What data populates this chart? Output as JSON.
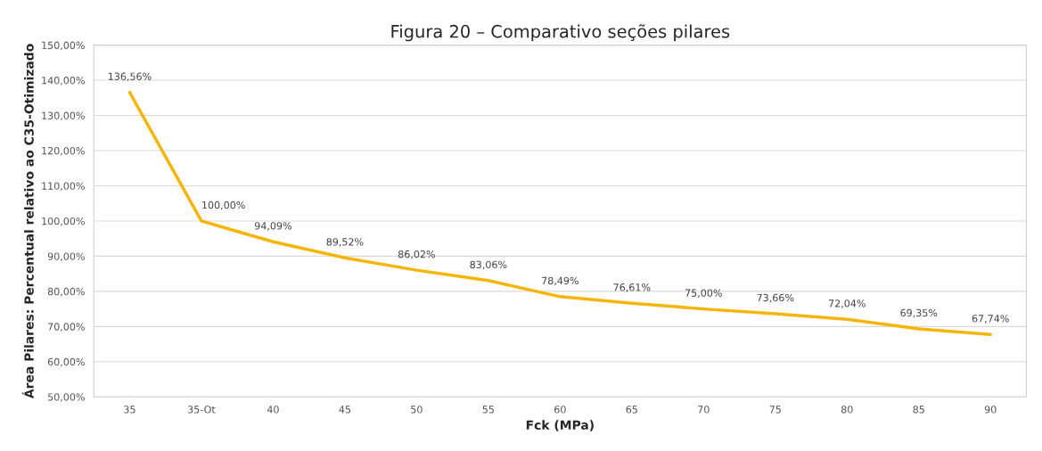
{
  "chart_data": {
    "type": "line",
    "title": "Figura 20 – Comparativo seções pilares",
    "xlabel": "Fck (MPa)",
    "ylabel": "Área Pilares: Percentual relativo ao C35-Otimizado",
    "categories": [
      "35",
      "35-Ot",
      "40",
      "45",
      "50",
      "55",
      "60",
      "65",
      "70",
      "75",
      "80",
      "85",
      "90"
    ],
    "series": [
      {
        "color": "#f5b50a",
        "values": [
          136.56,
          100.0,
          94.09,
          89.52,
          86.02,
          83.06,
          78.49,
          76.61,
          75.0,
          73.66,
          72.04,
          69.35,
          67.74
        ],
        "value_labels": [
          "136,56%",
          "100,00%",
          "94,09%",
          "89,52%",
          "86,02%",
          "83,06%",
          "78,49%",
          "76,61%",
          "75,00%",
          "73,66%",
          "72,04%",
          "69,35%",
          "67,74%"
        ]
      }
    ],
    "ylim": [
      50,
      150
    ],
    "yticks": [
      {
        "value": 50,
        "label": "50,00%"
      },
      {
        "value": 60,
        "label": "60,00%"
      },
      {
        "value": 70,
        "label": "70,00%"
      },
      {
        "value": 80,
        "label": "80,00%"
      },
      {
        "value": 90,
        "label": "90,00%"
      },
      {
        "value": 100,
        "label": "100,00%"
      },
      {
        "value": 110,
        "label": "110,00%"
      },
      {
        "value": 120,
        "label": "120,00%"
      },
      {
        "value": 130,
        "label": "130,00%"
      },
      {
        "value": 140,
        "label": "140,00%"
      },
      {
        "value": 150,
        "label": "150,00%"
      }
    ],
    "grid": "y",
    "marker": "none",
    "line_style": "solid",
    "legend": false
  }
}
